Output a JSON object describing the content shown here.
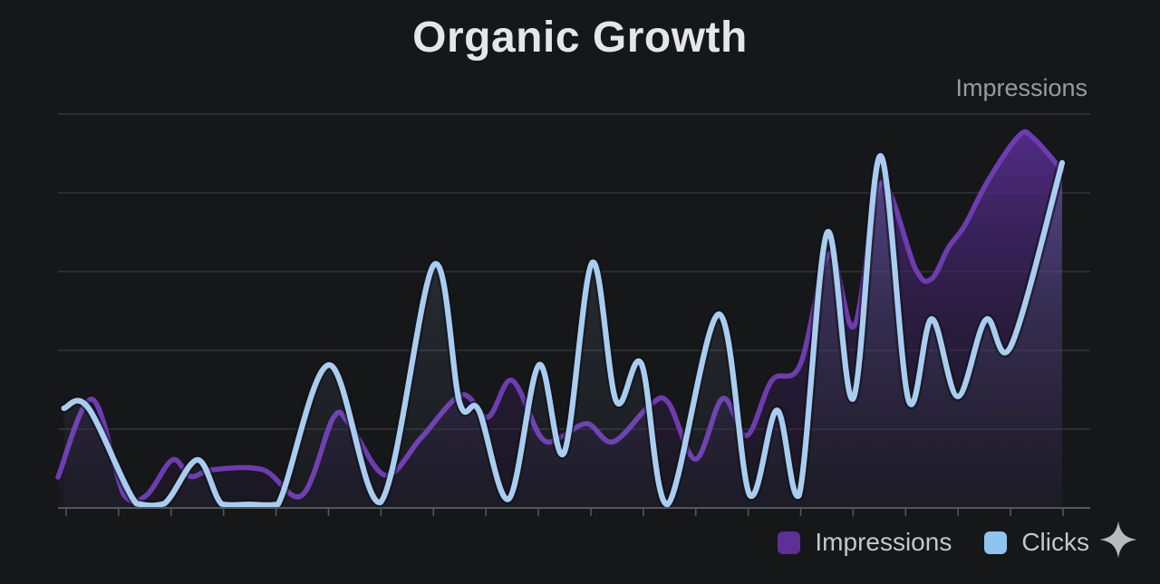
{
  "title": "Organic Growth",
  "axis_series_label": "Impressions",
  "legend": [
    {
      "label": "Impressions",
      "swatch_color": "#5e2f96"
    },
    {
      "label": "Clicks",
      "swatch_color": "#8ec5ef"
    }
  ],
  "icons": {
    "sparkle_color": "#b9babd"
  },
  "colors": {
    "background": "#161719",
    "grid_line": "#333538",
    "axis_line": "#55575b",
    "impressions_line": "#6e3cb0",
    "clicks_line": "#a8cdf1"
  },
  "chart_data": {
    "type": "area",
    "title": "Organic Growth",
    "legend_position": "bottom-right",
    "grid": {
      "horizontal_gridlines": 5,
      "x_ticks": 20,
      "x_axis_labels": "none",
      "y_axis_labels": "none"
    },
    "x_range": [
      0,
      1
    ],
    "y_range": [
      0,
      100
    ],
    "series": [
      {
        "name": "Impressions",
        "color": "#6e3cb0",
        "fill": "purple-gradient",
        "halo": false,
        "points": [
          [
            0.0,
            7.8
          ],
          [
            0.034,
            27.6
          ],
          [
            0.066,
            3.2
          ],
          [
            0.088,
            3.2
          ],
          [
            0.114,
            12.2
          ],
          [
            0.132,
            8.0
          ],
          [
            0.154,
            9.7
          ],
          [
            0.204,
            9.7
          ],
          [
            0.243,
            3.2
          ],
          [
            0.274,
            22.8
          ],
          [
            0.29,
            21.4
          ],
          [
            0.326,
            8.3
          ],
          [
            0.362,
            17.9
          ],
          [
            0.402,
            28.7
          ],
          [
            0.428,
            23.0
          ],
          [
            0.452,
            32.4
          ],
          [
            0.481,
            17.9
          ],
          [
            0.5,
            17.9
          ],
          [
            0.527,
            21.4
          ],
          [
            0.553,
            16.8
          ],
          [
            0.59,
            26.2
          ],
          [
            0.608,
            26.7
          ],
          [
            0.635,
            12.4
          ],
          [
            0.662,
            27.8
          ],
          [
            0.686,
            18.4
          ],
          [
            0.711,
            32.4
          ],
          [
            0.739,
            36.3
          ],
          [
            0.768,
            64.6
          ],
          [
            0.793,
            46.2
          ],
          [
            0.819,
            82.3
          ],
          [
            0.854,
            60.7
          ],
          [
            0.87,
            58.2
          ],
          [
            0.887,
            66.2
          ],
          [
            0.903,
            71.7
          ],
          [
            0.926,
            83.0
          ],
          [
            0.957,
            94.5
          ],
          [
            0.971,
            94.0
          ],
          [
            1.0,
            85.7
          ]
        ]
      },
      {
        "name": "Clicks",
        "color": "#a8cdf1",
        "fill": "blue-gradient",
        "halo": true,
        "points": [
          [
            0.006,
            25.3
          ],
          [
            0.03,
            25.5
          ],
          [
            0.078,
            1.1
          ],
          [
            0.106,
            1.1
          ],
          [
            0.139,
            12.2
          ],
          [
            0.163,
            1.0
          ],
          [
            0.19,
            0.9
          ],
          [
            0.219,
            0.9
          ],
          [
            0.27,
            36.3
          ],
          [
            0.321,
            1.4
          ],
          [
            0.374,
            61.6
          ],
          [
            0.4,
            26.7
          ],
          [
            0.419,
            24.8
          ],
          [
            0.449,
            2.3
          ],
          [
            0.479,
            36.3
          ],
          [
            0.504,
            14.0
          ],
          [
            0.532,
            62.3
          ],
          [
            0.556,
            27.1
          ],
          [
            0.581,
            36.6
          ],
          [
            0.607,
            0.9
          ],
          [
            0.658,
            49.2
          ],
          [
            0.689,
            3.2
          ],
          [
            0.716,
            24.8
          ],
          [
            0.738,
            3.2
          ],
          [
            0.766,
            69.9
          ],
          [
            0.792,
            27.8
          ],
          [
            0.819,
            89.4
          ],
          [
            0.847,
            27.4
          ],
          [
            0.87,
            48.0
          ],
          [
            0.896,
            28.3
          ],
          [
            0.924,
            47.8
          ],
          [
            0.949,
            41.1
          ],
          [
            1.0,
            87.6
          ]
        ]
      }
    ]
  }
}
